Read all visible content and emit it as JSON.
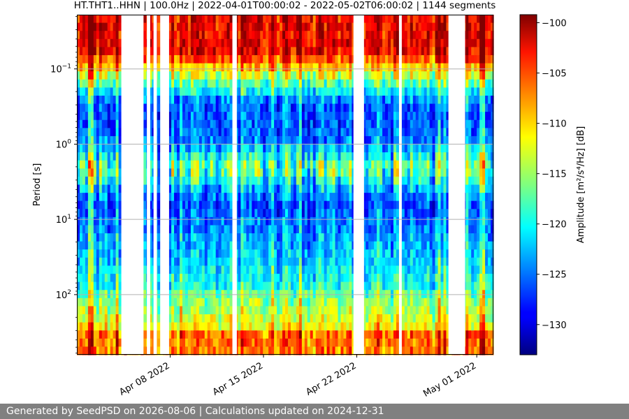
{
  "chart_data": {
    "type": "heatmap",
    "title": "HT.THT1..HHN | 100.0Hz | 2022-04-01T00:00:02 - 2022-05-02T06:00:02 | 1144 segments",
    "ylabel": "Period [s]",
    "yscale": "log",
    "y_ticks": [
      {
        "value": 0.1,
        "base": "10",
        "exp": "−1"
      },
      {
        "value": 1,
        "base": "10",
        "exp": "0"
      },
      {
        "value": 10,
        "base": "10",
        "exp": "1"
      },
      {
        "value": 100,
        "base": "10",
        "exp": "2"
      }
    ],
    "ylim": [
      0.019,
      630
    ],
    "xlim": [
      "2022-04-01T00:00:02",
      "2022-05-02T06:00:02"
    ],
    "x_ticks": [
      {
        "date": "2022-04-08",
        "label": "Apr 08 2022"
      },
      {
        "date": "2022-04-15",
        "label": "Apr 15 2022"
      },
      {
        "date": "2022-04-22",
        "label": "Apr 22 2022"
      },
      {
        "date": "2022-05-01",
        "label": "May 01 2022"
      }
    ],
    "grid": true,
    "colormap": "jet",
    "colorbar": {
      "label": "Amplitude [m²/s⁴/Hz] [dB]",
      "range": [
        -133,
        -99.2
      ],
      "ticks": [
        "−100",
        "−105",
        "−110",
        "−115",
        "−120",
        "−125",
        "−130"
      ],
      "tick_values": [
        -100,
        -105,
        -110,
        -115,
        -120,
        -125,
        -130
      ]
    },
    "data_gaps": [
      {
        "start": "2022-04-04T08:00:00",
        "end": "2022-04-06T00:00:00"
      },
      {
        "start": "2022-04-06T06:00:00",
        "end": "2022-04-06T12:00:00"
      },
      {
        "start": "2022-04-06T18:00:00",
        "end": "2022-04-07T00:00:00"
      },
      {
        "start": "2022-04-07T06:00:00",
        "end": "2022-04-07T22:00:00"
      },
      {
        "start": "2022-04-12T16:00:00",
        "end": "2022-04-13T00:00:00"
      },
      {
        "start": "2022-04-21T18:00:00",
        "end": "2022-04-22T13:00:00"
      },
      {
        "start": "2022-04-25T04:00:00",
        "end": "2022-04-25T09:00:00"
      },
      {
        "start": "2022-04-28T21:00:00",
        "end": "2022-04-30T03:00:00"
      }
    ]
  },
  "footer": "Generated by SeedPSD on 2026-08-06 | Calculations updated on 2024-12-31",
  "colors": {
    "footer_bg": "#808080",
    "grid": "#b0b0b0",
    "gap": "#ffffff"
  }
}
